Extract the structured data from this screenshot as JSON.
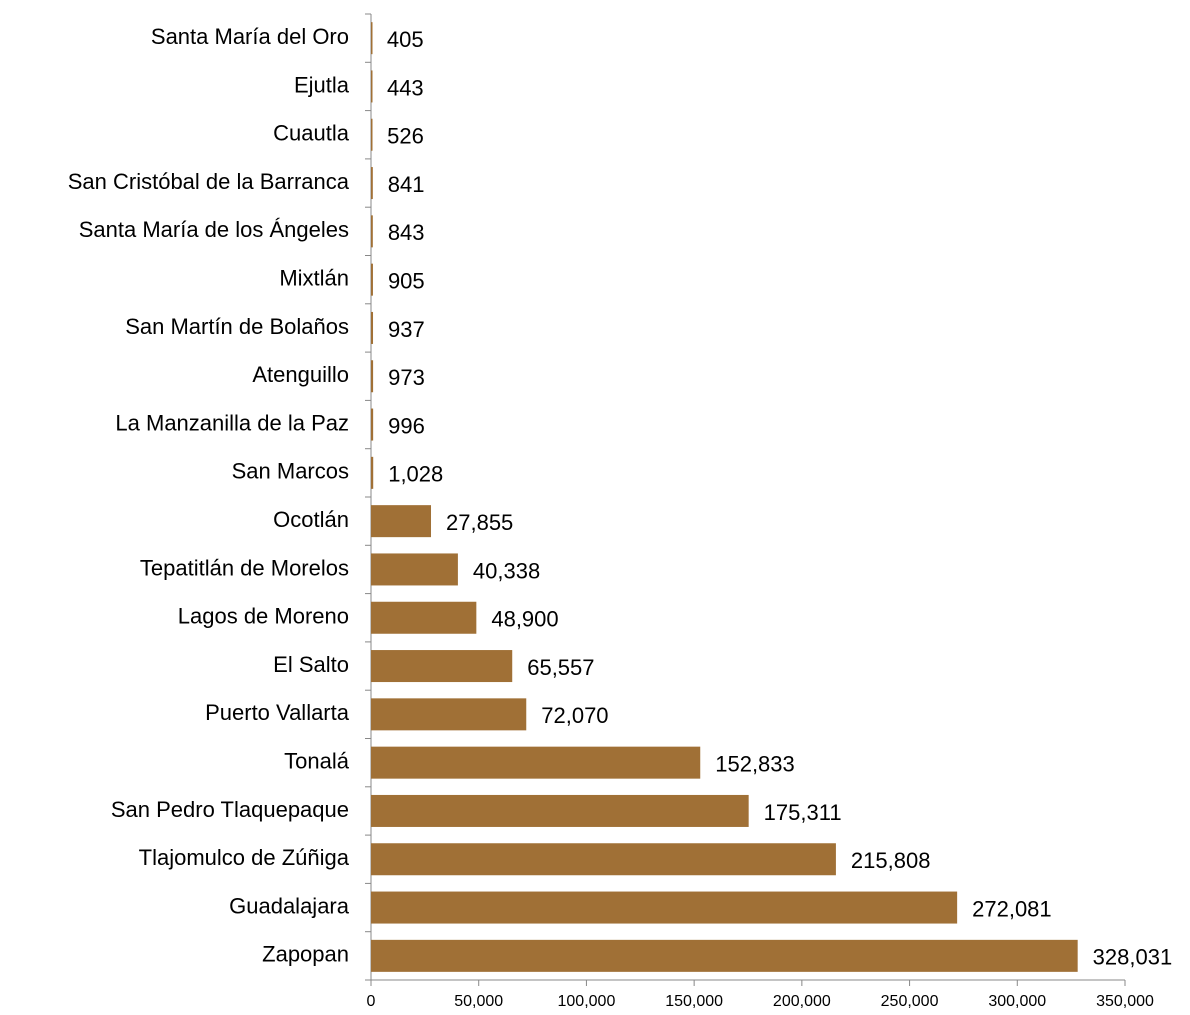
{
  "chart_data": {
    "type": "bar",
    "orientation": "horizontal",
    "categories": [
      "Santa María del Oro",
      "Ejutla",
      "Cuautla",
      "San Cristóbal de la Barranca",
      "Santa María de los Ángeles",
      "Mixtlán",
      "San Martín de Bolaños",
      "Atenguillo",
      "La Manzanilla de la Paz",
      "San Marcos",
      "Ocotlán",
      "Tepatitlán de Morelos",
      "Lagos de Moreno",
      "El Salto",
      "Puerto Vallarta",
      "Tonalá",
      "San Pedro Tlaquepaque",
      "Tlajomulco de Zúñiga",
      "Guadalajara",
      "Zapopan"
    ],
    "values": [
      405,
      443,
      526,
      841,
      843,
      905,
      937,
      973,
      996,
      1028,
      27855,
      40338,
      48900,
      65557,
      72070,
      152833,
      175311,
      215808,
      272081,
      328031
    ],
    "value_labels": [
      "405",
      "443",
      "526",
      "841",
      "843",
      "905",
      "937",
      "973",
      "996",
      "1,028",
      "27,855",
      "40,338",
      "48,900",
      "65,557",
      "72,070",
      "152,833",
      "175,311",
      "215,808",
      "272,081",
      "328,031"
    ],
    "color": "#a07036",
    "xlim": [
      0,
      350000
    ],
    "xticks": [
      0,
      {
        "value": 50000,
        "label": "50,000"
      },
      {
        "value": 100000,
        "label": "100,000"
      },
      {
        "value": 150000,
        "label": "150,000"
      },
      {
        "value": 200000,
        "label": "200,000"
      },
      {
        "value": 250000,
        "label": "250,000"
      },
      {
        "value": 300000,
        "label": "300,000"
      },
      {
        "value": 350000,
        "label": "350,000"
      }
    ]
  }
}
